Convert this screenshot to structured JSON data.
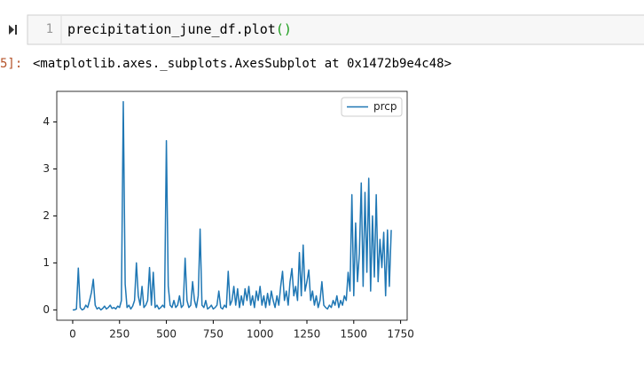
{
  "cell": {
    "line_number": "1",
    "code": "precipitation_june_df.plot",
    "code_parens": "()"
  },
  "output": {
    "prompt": "5]:",
    "text": "<matplotlib.axes._subplots.AxesSubplot at 0x1472b9e4c48>"
  },
  "chart_data": {
    "type": "line",
    "legend": "upper right",
    "x": [
      0,
      10,
      20,
      30,
      40,
      50,
      60,
      70,
      80,
      90,
      100,
      110,
      120,
      130,
      140,
      150,
      160,
      170,
      180,
      190,
      200,
      210,
      220,
      230,
      240,
      250,
      260,
      270,
      280,
      290,
      300,
      310,
      320,
      330,
      340,
      350,
      360,
      370,
      380,
      390,
      400,
      410,
      420,
      430,
      440,
      450,
      460,
      470,
      480,
      490,
      500,
      510,
      520,
      530,
      540,
      550,
      560,
      570,
      580,
      590,
      600,
      610,
      620,
      630,
      640,
      650,
      660,
      670,
      680,
      690,
      700,
      710,
      720,
      730,
      740,
      750,
      760,
      770,
      780,
      790,
      800,
      810,
      820,
      830,
      840,
      850,
      860,
      870,
      880,
      890,
      900,
      910,
      920,
      930,
      940,
      950,
      960,
      970,
      980,
      990,
      1000,
      1010,
      1020,
      1030,
      1040,
      1050,
      1060,
      1070,
      1080,
      1090,
      1100,
      1110,
      1120,
      1130,
      1140,
      1150,
      1160,
      1170,
      1180,
      1190,
      1200,
      1210,
      1220,
      1230,
      1240,
      1250,
      1260,
      1270,
      1280,
      1290,
      1300,
      1310,
      1320,
      1330,
      1340,
      1350,
      1360,
      1370,
      1380,
      1390,
      1400,
      1410,
      1420,
      1430,
      1440,
      1450,
      1460,
      1470,
      1480,
      1490,
      1500,
      1510,
      1520,
      1530,
      1540,
      1550,
      1560,
      1570,
      1580,
      1590,
      1600,
      1610,
      1620,
      1630,
      1640,
      1650,
      1660,
      1670,
      1680,
      1690,
      1700
    ],
    "series": [
      {
        "name": "prcp",
        "color": "#1f77b4",
        "values": [
          0,
          0,
          0.02,
          0.89,
          0.05,
          0,
          0.02,
          0.1,
          0.05,
          0.2,
          0.37,
          0.65,
          0.1,
          0.02,
          0.05,
          0,
          0.03,
          0.08,
          0.02,
          0.05,
          0.1,
          0.03,
          0.05,
          0.02,
          0.08,
          0.05,
          0.2,
          4.43,
          0.55,
          0.05,
          0.1,
          0.02,
          0.08,
          0.2,
          1.0,
          0.3,
          0.1,
          0.5,
          0.05,
          0.1,
          0.2,
          0.9,
          0.1,
          0.8,
          0.05,
          0.1,
          0.02,
          0.05,
          0.1,
          0.05,
          3.6,
          0.5,
          0.1,
          0.05,
          0.2,
          0.05,
          0.1,
          0.3,
          0.05,
          0.1,
          1.1,
          0.2,
          0.05,
          0.1,
          0.6,
          0.2,
          0.05,
          0.3,
          1.72,
          0.1,
          0.05,
          0.2,
          0.02,
          0.05,
          0.1,
          0.02,
          0.05,
          0.1,
          0.4,
          0.05,
          0.02,
          0.1,
          0.05,
          0.82,
          0.1,
          0.2,
          0.5,
          0.1,
          0.45,
          0.05,
          0.3,
          0.1,
          0.45,
          0.2,
          0.5,
          0.1,
          0.3,
          0.05,
          0.4,
          0.2,
          0.5,
          0.1,
          0.3,
          0.05,
          0.35,
          0.1,
          0.4,
          0.2,
          0.05,
          0.3,
          0.1,
          0.5,
          0.82,
          0.2,
          0.4,
          0.1,
          0.6,
          0.88,
          0.3,
          0.5,
          0.2,
          1.22,
          0.3,
          1.38,
          0.4,
          0.6,
          0.85,
          0.2,
          0.4,
          0.1,
          0.3,
          0.05,
          0.2,
          0.6,
          0.1,
          0.05,
          0.02,
          0.1,
          0.05,
          0.2,
          0.1,
          0.3,
          0.05,
          0.2,
          0.1,
          0.3,
          0.2,
          0.8,
          0.4,
          2.45,
          0.3,
          1.85,
          0.6,
          1.2,
          2.7,
          0.5,
          2.5,
          0.8,
          2.8,
          0.4,
          2.0,
          0.7,
          2.45,
          0.6,
          1.5,
          0.9,
          1.65,
          0.3,
          1.7,
          0.5,
          1.7
        ]
      }
    ],
    "xlim": [
      -85,
      1785
    ],
    "xticks": [
      0,
      250,
      500,
      750,
      1000,
      1250,
      1500,
      1750
    ],
    "ylim": [
      -0.22,
      4.65
    ],
    "yticks": [
      0,
      1,
      2,
      3,
      4
    ]
  }
}
